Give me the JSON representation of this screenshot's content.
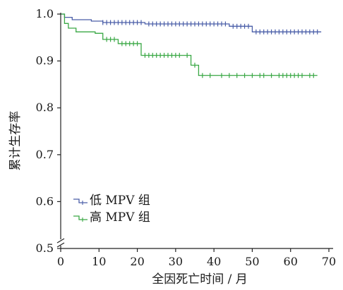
{
  "chart_data": {
    "type": "line",
    "subtype": "kaplan-meier",
    "title": "",
    "xlabel": "全因死亡时间 / 月",
    "ylabel": "累计生存率",
    "xlim": [
      0,
      70
    ],
    "ylim": [
      0.5,
      1.0
    ],
    "x_ticks": [
      "0",
      "10",
      "20",
      "30",
      "40",
      "50",
      "60",
      "70"
    ],
    "y_ticks": [
      "0.5",
      "0.6",
      "0.7",
      "0.8",
      "0.9",
      "1.0"
    ],
    "y_axis_break": true,
    "grid": false,
    "legend_position": "bottom-left",
    "series": [
      {
        "name": "低 MPV 组",
        "color": "#4a5ea8",
        "steps": [
          [
            0,
            1.0
          ],
          [
            1,
            0.993
          ],
          [
            3,
            0.988
          ],
          [
            8,
            0.985
          ],
          [
            11,
            0.982
          ],
          [
            22,
            0.979
          ],
          [
            44,
            0.974
          ],
          [
            50,
            0.962
          ],
          [
            68,
            0.962
          ]
        ],
        "censored_x": [
          11,
          12,
          13,
          14,
          15,
          16,
          17,
          18,
          19,
          20,
          21,
          23,
          24,
          25,
          26,
          27,
          28,
          29,
          30,
          31,
          32,
          33,
          34,
          35,
          36,
          37,
          38,
          39,
          40,
          41,
          42,
          43,
          45,
          46,
          47,
          48,
          49,
          51,
          52,
          53,
          54,
          55,
          56,
          57,
          58,
          59,
          60,
          61,
          62,
          63,
          64,
          65,
          66,
          67
        ]
      },
      {
        "name": "高 MPV 组",
        "color": "#3aa845",
        "steps": [
          [
            0,
            1.0
          ],
          [
            1,
            0.98
          ],
          [
            2,
            0.97
          ],
          [
            4,
            0.962
          ],
          [
            9,
            0.959
          ],
          [
            11,
            0.946
          ],
          [
            15,
            0.937
          ],
          [
            21,
            0.912
          ],
          [
            34,
            0.891
          ],
          [
            36,
            0.869
          ],
          [
            67,
            0.869
          ]
        ],
        "censored_x": [
          12,
          13,
          14,
          16,
          17,
          18,
          19,
          20,
          22,
          23,
          24,
          25,
          26,
          27,
          28,
          29,
          30,
          31,
          33,
          35,
          37,
          39,
          42,
          44,
          46,
          48,
          50,
          52,
          53,
          55,
          57,
          58,
          59,
          60,
          61,
          62,
          63,
          65,
          66
        ]
      }
    ]
  }
}
